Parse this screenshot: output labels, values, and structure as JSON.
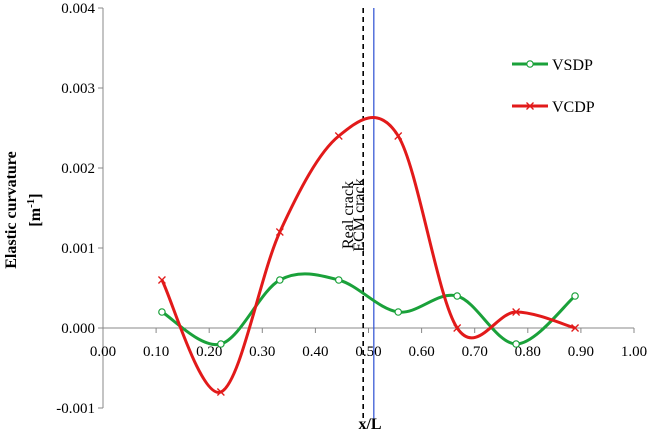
{
  "chart_data": {
    "type": "line",
    "xlabel": "x/L",
    "ylabel": "Elastic curvature",
    "ylabel_unit": "[m",
    "ylabel_unit_exp": "-1",
    "ylabel_unit_close": "]",
    "xlim": [
      0.0,
      1.0
    ],
    "ylim": [
      -0.001,
      0.004
    ],
    "x_ticks": [
      0.0,
      0.1,
      0.2,
      0.3,
      0.4,
      0.5,
      0.6,
      0.7,
      0.8,
      0.9,
      1.0
    ],
    "x_tick_labels": [
      "0.00",
      "0.10",
      "0.20",
      "0.30",
      "0.40",
      "0.50",
      "0.60",
      "0.70",
      "0.80",
      "0.90",
      "1.00"
    ],
    "y_ticks": [
      -0.001,
      0.0,
      0.001,
      0.002,
      0.003,
      0.004
    ],
    "y_tick_labels": [
      "-0.001",
      "0.000",
      "0.001",
      "0.002",
      "0.003",
      "0.004"
    ],
    "grid": false,
    "legend_position": "top-right",
    "series": [
      {
        "name": "VSDP",
        "color": "#1aa13a",
        "marker": "circle",
        "x": [
          0.111,
          0.222,
          0.333,
          0.444,
          0.556,
          0.667,
          0.778,
          0.889
        ],
        "y": [
          0.0002,
          -0.0002,
          0.0006,
          0.0006,
          0.0002,
          0.0004,
          -0.0002,
          0.0004
        ]
      },
      {
        "name": "VCDP",
        "color": "#e21a1a",
        "marker": "x",
        "x": [
          0.111,
          0.222,
          0.333,
          0.444,
          0.556,
          0.667,
          0.778,
          0.889
        ],
        "y": [
          0.0006,
          -0.0008,
          0.0012,
          0.0024,
          0.0024,
          0.0,
          0.0002,
          0.0
        ]
      }
    ],
    "vertical_lines": [
      {
        "label": "Real crack",
        "x": 0.49,
        "style": "dashed",
        "color": "#000000"
      },
      {
        "label": "ECM crack",
        "x": 0.51,
        "style": "solid",
        "color": "#3b5bd6"
      }
    ]
  }
}
